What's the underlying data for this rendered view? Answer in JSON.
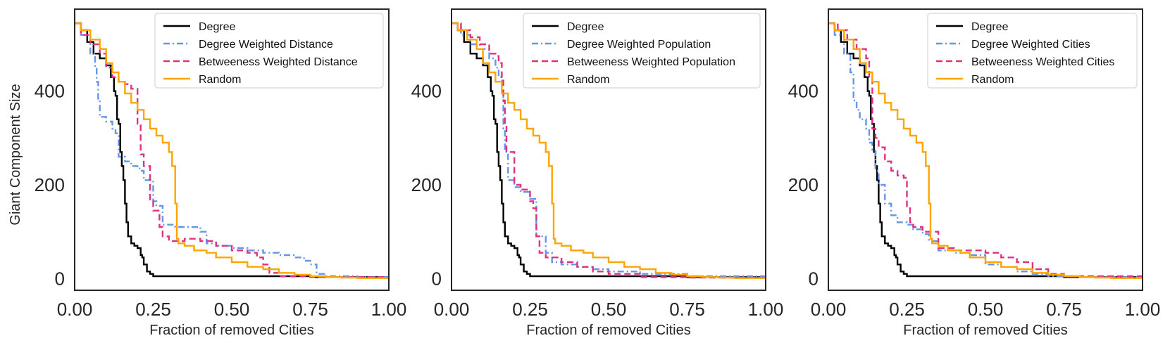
{
  "figure": {
    "ylabel": "Giant Component Size",
    "xlabel": "Fraction of removed Cities"
  },
  "chart_data": [
    {
      "type": "line",
      "xlabel": "Fraction of removed Cities",
      "ylabel": "Giant Component Size",
      "xlim": [
        0,
        1
      ],
      "ylim": [
        -25,
        575
      ],
      "xticks": [
        "0.00",
        "0.25",
        "0.50",
        "0.75",
        "1.00"
      ],
      "yticks": [
        "0",
        "200",
        "400"
      ],
      "legend": "top-right",
      "series": [
        {
          "name": "Degree",
          "color": "#000000",
          "dash": "solid",
          "x": [
            0,
            0.02,
            0.04,
            0.06,
            0.08,
            0.1,
            0.115,
            0.125,
            0.13,
            0.135,
            0.14,
            0.145,
            0.15,
            0.155,
            0.16,
            0.165,
            0.17,
            0.18,
            0.19,
            0.2,
            0.21,
            0.215,
            0.22,
            0.23,
            0.24,
            0.25,
            0.3,
            0.5,
            0.75,
            1.0
          ],
          "y": [
            545,
            530,
            505,
            480,
            470,
            455,
            430,
            400,
            390,
            340,
            330,
            270,
            240,
            210,
            160,
            120,
            90,
            75,
            70,
            65,
            50,
            45,
            30,
            15,
            10,
            5,
            5,
            5,
            3,
            2
          ]
        },
        {
          "name": "Degree Weighted Distance",
          "color": "#6495ED",
          "dash": "dashdot",
          "x": [
            0,
            0.02,
            0.05,
            0.065,
            0.07,
            0.075,
            0.08,
            0.1,
            0.12,
            0.13,
            0.14,
            0.16,
            0.18,
            0.2,
            0.21,
            0.22,
            0.25,
            0.26,
            0.28,
            0.3,
            0.32,
            0.35,
            0.4,
            0.42,
            0.45,
            0.5,
            0.55,
            0.6,
            0.65,
            0.7,
            0.73,
            0.75,
            0.77,
            0.8,
            0.9,
            1.0
          ],
          "y": [
            545,
            520,
            480,
            450,
            420,
            380,
            345,
            335,
            320,
            310,
            260,
            250,
            240,
            235,
            230,
            210,
            165,
            155,
            115,
            115,
            110,
            110,
            100,
            75,
            70,
            65,
            60,
            55,
            50,
            45,
            38,
            30,
            10,
            5,
            3,
            2
          ]
        },
        {
          "name": "Betweeness Weighted Distance",
          "color": "#E0307F",
          "dash": "dashed",
          "x": [
            0,
            0.02,
            0.05,
            0.08,
            0.1,
            0.12,
            0.14,
            0.16,
            0.18,
            0.2,
            0.21,
            0.22,
            0.24,
            0.25,
            0.27,
            0.28,
            0.3,
            0.35,
            0.4,
            0.45,
            0.5,
            0.55,
            0.58,
            0.6,
            0.62,
            0.65,
            0.7,
            0.75,
            0.8,
            1.0
          ],
          "y": [
            545,
            520,
            500,
            480,
            450,
            430,
            420,
            415,
            405,
            330,
            265,
            240,
            165,
            145,
            110,
            90,
            80,
            85,
            80,
            70,
            60,
            55,
            45,
            30,
            12,
            5,
            5,
            3,
            3,
            2
          ]
        },
        {
          "name": "Random",
          "color": "#FFA500",
          "dash": "solid",
          "x": [
            0,
            0.02,
            0.05,
            0.08,
            0.1,
            0.12,
            0.14,
            0.16,
            0.18,
            0.2,
            0.22,
            0.24,
            0.26,
            0.28,
            0.3,
            0.31,
            0.32,
            0.325,
            0.33,
            0.35,
            0.38,
            0.42,
            0.45,
            0.5,
            0.55,
            0.6,
            0.65,
            0.7,
            0.75,
            0.8,
            0.85,
            0.9,
            1.0
          ],
          "y": [
            545,
            530,
            510,
            490,
            460,
            440,
            420,
            395,
            375,
            360,
            340,
            320,
            305,
            290,
            270,
            240,
            160,
            85,
            75,
            70,
            60,
            55,
            45,
            35,
            25,
            20,
            12,
            8,
            5,
            3,
            2,
            1,
            1
          ]
        }
      ]
    },
    {
      "type": "line",
      "xlabel": "Fraction of removed Cities",
      "ylabel": "",
      "xlim": [
        0,
        1
      ],
      "ylim": [
        -25,
        575
      ],
      "xticks": [
        "0.00",
        "0.25",
        "0.50",
        "0.75",
        "1.00"
      ],
      "yticks": [
        "0",
        "200",
        "400"
      ],
      "legend": "top-right",
      "series": [
        {
          "name": "Degree",
          "color": "#000000",
          "dash": "solid",
          "x": [
            0,
            0.02,
            0.04,
            0.06,
            0.08,
            0.1,
            0.115,
            0.125,
            0.13,
            0.135,
            0.14,
            0.145,
            0.15,
            0.155,
            0.16,
            0.165,
            0.17,
            0.18,
            0.19,
            0.2,
            0.21,
            0.215,
            0.22,
            0.23,
            0.24,
            0.25,
            0.3,
            0.5,
            0.75,
            1.0
          ],
          "y": [
            545,
            530,
            505,
            480,
            470,
            455,
            430,
            400,
            390,
            340,
            330,
            270,
            240,
            210,
            160,
            120,
            90,
            75,
            70,
            65,
            50,
            45,
            30,
            15,
            10,
            5,
            5,
            5,
            3,
            2
          ]
        },
        {
          "name": "Degree Weighted Population",
          "color": "#6495ED",
          "dash": "dashdot",
          "x": [
            0,
            0.03,
            0.06,
            0.09,
            0.12,
            0.14,
            0.15,
            0.16,
            0.165,
            0.17,
            0.18,
            0.2,
            0.22,
            0.25,
            0.27,
            0.3,
            0.32,
            0.35,
            0.4,
            0.45,
            0.5,
            0.6,
            0.75,
            1.0
          ],
          "y": [
            545,
            520,
            500,
            490,
            470,
            450,
            430,
            400,
            320,
            270,
            210,
            195,
            185,
            170,
            90,
            55,
            35,
            30,
            25,
            20,
            15,
            10,
            5,
            2
          ]
        },
        {
          "name": "Betweeness Weighted Population",
          "color": "#E0307F",
          "dash": "dashed",
          "x": [
            0,
            0.03,
            0.06,
            0.09,
            0.12,
            0.14,
            0.15,
            0.16,
            0.165,
            0.17,
            0.175,
            0.2,
            0.22,
            0.25,
            0.26,
            0.27,
            0.28,
            0.3,
            0.35,
            0.4,
            0.45,
            0.5,
            0.6,
            0.75,
            1.0
          ],
          "y": [
            545,
            530,
            515,
            500,
            480,
            475,
            460,
            430,
            380,
            330,
            270,
            200,
            190,
            165,
            150,
            90,
            55,
            45,
            35,
            25,
            15,
            10,
            3,
            2,
            1
          ]
        },
        {
          "name": "Random",
          "color": "#FFA500",
          "dash": "solid",
          "x": [
            0,
            0.02,
            0.05,
            0.08,
            0.1,
            0.12,
            0.14,
            0.16,
            0.18,
            0.2,
            0.22,
            0.24,
            0.26,
            0.28,
            0.3,
            0.31,
            0.32,
            0.325,
            0.33,
            0.35,
            0.38,
            0.42,
            0.45,
            0.5,
            0.55,
            0.6,
            0.65,
            0.7,
            0.75,
            0.8,
            0.85,
            0.9,
            1.0
          ],
          "y": [
            545,
            530,
            510,
            490,
            460,
            440,
            420,
            395,
            375,
            360,
            340,
            320,
            305,
            290,
            270,
            240,
            160,
            85,
            75,
            70,
            60,
            55,
            45,
            35,
            25,
            20,
            12,
            8,
            5,
            3,
            2,
            1,
            1
          ]
        }
      ]
    },
    {
      "type": "line",
      "xlabel": "Fraction of removed Cities",
      "ylabel": "",
      "xlim": [
        0,
        1
      ],
      "ylim": [
        -25,
        575
      ],
      "xticks": [
        "0.00",
        "0.25",
        "0.50",
        "0.75",
        "1.00"
      ],
      "yticks": [
        "0",
        "200",
        "400"
      ],
      "legend": "top-right",
      "series": [
        {
          "name": "Degree",
          "color": "#000000",
          "dash": "solid",
          "x": [
            0,
            0.02,
            0.04,
            0.06,
            0.08,
            0.1,
            0.115,
            0.125,
            0.13,
            0.135,
            0.14,
            0.145,
            0.15,
            0.155,
            0.16,
            0.165,
            0.17,
            0.18,
            0.19,
            0.2,
            0.21,
            0.215,
            0.22,
            0.23,
            0.24,
            0.25,
            0.3,
            0.5,
            0.75,
            1.0
          ],
          "y": [
            545,
            530,
            505,
            480,
            470,
            455,
            430,
            400,
            390,
            340,
            330,
            270,
            240,
            210,
            160,
            120,
            90,
            75,
            70,
            65,
            50,
            45,
            30,
            15,
            10,
            5,
            5,
            5,
            3,
            2
          ]
        },
        {
          "name": "Degree Weighted Cities",
          "color": "#6495ED",
          "dash": "dashdot",
          "x": [
            0,
            0.02,
            0.05,
            0.07,
            0.08,
            0.09,
            0.1,
            0.12,
            0.13,
            0.14,
            0.15,
            0.16,
            0.18,
            0.2,
            0.22,
            0.25,
            0.27,
            0.3,
            0.32,
            0.35,
            0.4,
            0.45,
            0.5,
            0.55,
            0.6,
            0.65,
            0.7,
            0.8,
            1.0
          ],
          "y": [
            545,
            520,
            480,
            440,
            380,
            360,
            340,
            320,
            290,
            275,
            230,
            200,
            160,
            135,
            120,
            115,
            105,
            95,
            80,
            60,
            55,
            50,
            30,
            25,
            15,
            10,
            5,
            3,
            2
          ]
        },
        {
          "name": "Betweeness Weighted Cities",
          "color": "#E0307F",
          "dash": "dashed",
          "x": [
            0,
            0.03,
            0.06,
            0.09,
            0.12,
            0.13,
            0.14,
            0.15,
            0.16,
            0.18,
            0.2,
            0.22,
            0.24,
            0.25,
            0.26,
            0.27,
            0.3,
            0.35,
            0.4,
            0.5,
            0.55,
            0.6,
            0.65,
            0.7,
            0.75,
            1.0
          ],
          "y": [
            545,
            530,
            510,
            490,
            470,
            430,
            320,
            300,
            280,
            250,
            230,
            220,
            215,
            150,
            120,
            110,
            100,
            65,
            60,
            55,
            45,
            35,
            20,
            10,
            5,
            2
          ]
        },
        {
          "name": "Random",
          "color": "#FFA500",
          "dash": "solid",
          "x": [
            0,
            0.02,
            0.05,
            0.08,
            0.1,
            0.12,
            0.14,
            0.16,
            0.18,
            0.2,
            0.22,
            0.24,
            0.26,
            0.28,
            0.3,
            0.31,
            0.32,
            0.325,
            0.33,
            0.35,
            0.38,
            0.42,
            0.45,
            0.5,
            0.55,
            0.6,
            0.65,
            0.7,
            0.75,
            0.8,
            0.85,
            0.9,
            1.0
          ],
          "y": [
            545,
            530,
            510,
            490,
            460,
            440,
            420,
            395,
            375,
            360,
            340,
            320,
            305,
            290,
            270,
            240,
            160,
            85,
            75,
            70,
            60,
            55,
            45,
            35,
            25,
            20,
            12,
            8,
            5,
            3,
            2,
            1,
            1
          ]
        }
      ]
    }
  ]
}
